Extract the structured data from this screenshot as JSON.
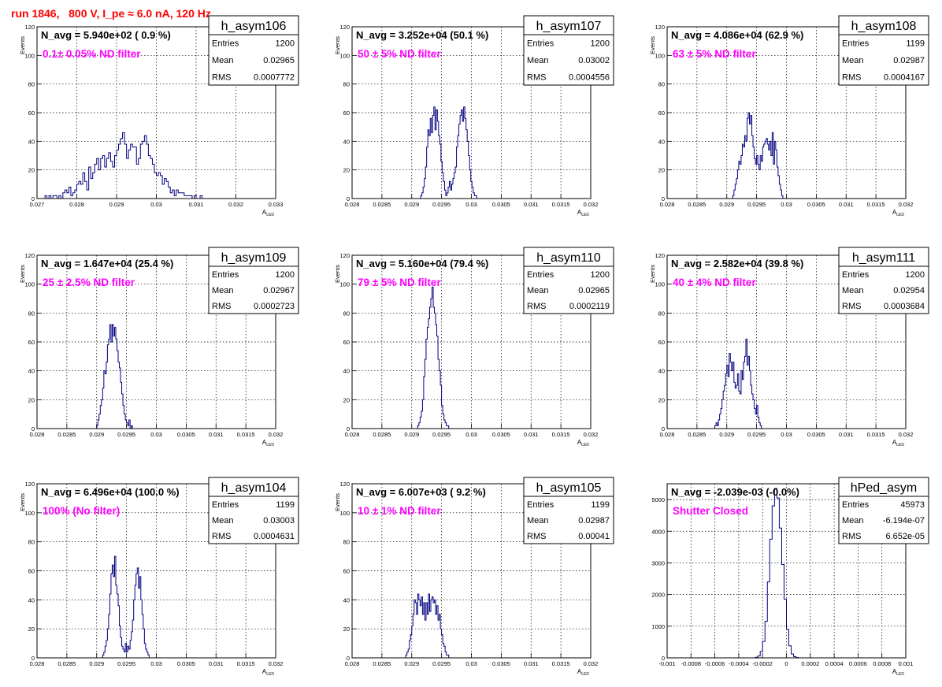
{
  "title": "run 1846,   800 V, I_pe ≈ 6.0 nA, 120 Hz",
  "stat_labels": {
    "entries": "Entries",
    "mean": "Mean",
    "rms": "RMS"
  },
  "line_color": "#000080",
  "chart_data": [
    {
      "type": "histogram",
      "name": "h_asym106",
      "navg": "N_avg = 5.940e+02 ( 0.9 %)",
      "note": "0.1± 0.05% ND filter",
      "stats": {
        "entries": "1200",
        "mean": "0.02965",
        "rms": "0.0007772"
      },
      "xlabel": "A",
      "xlabel_sub": "LED",
      "ylabel": "Events",
      "xlim": [
        0.027,
        0.033
      ],
      "ylim": [
        0,
        120
      ],
      "xticks": [
        0.027,
        0.028,
        0.029,
        0.03,
        0.031,
        0.032,
        0.033
      ],
      "xticklabels": [
        "0.027",
        "0.028",
        "0.029",
        "0.03",
        "0.031",
        "0.032",
        "0.033"
      ],
      "yticks": [
        0,
        20,
        40,
        60,
        80,
        100,
        120
      ],
      "bin_start": 0.0272,
      "bin_width": 5e-05,
      "values": [
        2,
        0,
        2,
        0,
        2,
        2,
        0,
        2,
        0,
        4,
        6,
        4,
        8,
        2,
        4,
        6,
        10,
        12,
        10,
        18,
        12,
        6,
        22,
        14,
        18,
        24,
        28,
        20,
        28,
        30,
        22,
        28,
        32,
        26,
        22,
        30,
        34,
        38,
        42,
        46,
        38,
        28,
        34,
        38,
        36,
        36,
        24,
        28,
        38,
        40,
        44,
        38,
        30,
        28,
        24,
        18,
        16,
        18,
        16,
        10,
        14,
        12,
        8,
        4,
        6,
        2,
        6,
        4,
        4,
        4,
        2,
        2,
        2,
        2,
        0,
        2,
        0,
        0,
        2,
        0,
        0,
        0,
        0,
        0,
        0,
        0,
        0,
        0,
        0,
        0,
        0,
        0
      ]
    },
    {
      "type": "histogram",
      "name": "h_asym107",
      "navg": "N_avg = 3.252e+04 (50.1 %)",
      "note": "50 ± 5% ND filter",
      "stats": {
        "entries": "1200",
        "mean": "0.03002",
        "rms": "0.0004556"
      },
      "xlabel": "A",
      "xlabel_sub": "LED",
      "ylabel": "Events",
      "xlim": [
        0.028,
        0.032
      ],
      "ylim": [
        0,
        120
      ],
      "xticks": [
        0.028,
        0.0285,
        0.029,
        0.0295,
        0.03,
        0.0305,
        0.031,
        0.0315,
        0.032
      ],
      "xticklabels": [
        "0.028",
        "0.0285",
        "0.029",
        "0.0295",
        "0.03",
        "0.0305",
        "0.031",
        "0.0315",
        "0.032"
      ],
      "yticks": [
        0,
        20,
        40,
        60,
        80,
        100,
        120
      ],
      "bin_start": 0.02915,
      "bin_width": 2e-05,
      "values": [
        2,
        4,
        8,
        14,
        22,
        36,
        48,
        44,
        56,
        46,
        58,
        64,
        48,
        62,
        54,
        44,
        38,
        26,
        18,
        12,
        6,
        2,
        4,
        8,
        12,
        6,
        10,
        14,
        18,
        22,
        36,
        44,
        52,
        58,
        62,
        54,
        64,
        56,
        48,
        40,
        30,
        20,
        12,
        8,
        4,
        2,
        2,
        0
      ]
    },
    {
      "type": "histogram",
      "name": "h_asym108",
      "navg": "N_avg = 4.086e+04 (62.9 %)",
      "note": "63 ± 5% ND filter",
      "stats": {
        "entries": "1199",
        "mean": "0.02987",
        "rms": "0.0004167"
      },
      "xlabel": "A",
      "xlabel_sub": "LED",
      "ylabel": "Events",
      "xlim": [
        0.028,
        0.032
      ],
      "ylim": [
        0,
        120
      ],
      "xticks": [
        0.028,
        0.0285,
        0.029,
        0.0295,
        0.03,
        0.0305,
        0.031,
        0.0315,
        0.032
      ],
      "xticklabels": [
        "0.028",
        "0.0285",
        "0.029",
        "0.0295",
        "0.03",
        "0.0305",
        "0.031",
        "0.0315",
        "0.032"
      ],
      "yticks": [
        0,
        20,
        40,
        60,
        80,
        100,
        120
      ],
      "bin_start": 0.0291,
      "bin_width": 2e-05,
      "values": [
        2,
        6,
        10,
        14,
        20,
        26,
        24,
        30,
        38,
        36,
        44,
        40,
        56,
        60,
        52,
        58,
        44,
        36,
        28,
        24,
        30,
        24,
        20,
        30,
        26,
        36,
        38,
        40,
        42,
        38,
        34,
        40,
        30,
        46,
        24,
        40,
        34,
        22,
        16,
        10,
        6,
        2,
        0
      ]
    },
    {
      "type": "histogram",
      "name": "h_asym109",
      "navg": "N_avg = 1.647e+04 (25.4 %)",
      "note": "25 ± 2.5% ND filter",
      "stats": {
        "entries": "1200",
        "mean": "0.02967",
        "rms": "0.0002723"
      },
      "xlabel": "A",
      "xlabel_sub": "LED",
      "ylabel": "Events",
      "xlim": [
        0.028,
        0.032
      ],
      "ylim": [
        0,
        120
      ],
      "xticks": [
        0.028,
        0.0285,
        0.029,
        0.0295,
        0.03,
        0.0305,
        0.031,
        0.0315,
        0.032
      ],
      "xticklabels": [
        "0.028",
        "0.0285",
        "0.029",
        "0.0295",
        "0.03",
        "0.0305",
        "0.031",
        "0.0315",
        "0.032"
      ],
      "yticks": [
        0,
        20,
        40,
        60,
        80,
        100,
        120
      ],
      "bin_start": 0.029,
      "bin_width": 2e-05,
      "values": [
        2,
        6,
        10,
        16,
        20,
        28,
        40,
        38,
        46,
        58,
        62,
        72,
        60,
        72,
        64,
        70,
        62,
        54,
        46,
        42,
        32,
        24,
        16,
        10,
        6,
        4,
        2,
        6,
        0,
        2
      ]
    },
    {
      "type": "histogram",
      "name": "h_asym110",
      "navg": "N_avg = 5.160e+04 (79.4 %)",
      "note": "79 ± 5% ND filter",
      "stats": {
        "entries": "1200",
        "mean": "0.02965",
        "rms": "0.0002119"
      },
      "xlabel": "A",
      "xlabel_sub": "LED",
      "ylabel": "Events",
      "xlim": [
        0.028,
        0.032
      ],
      "ylim": [
        0,
        120
      ],
      "xticks": [
        0.028,
        0.0285,
        0.029,
        0.0295,
        0.03,
        0.0305,
        0.031,
        0.0315,
        0.032
      ],
      "xticklabels": [
        "0.028",
        "0.0285",
        "0.029",
        "0.0295",
        "0.03",
        "0.0305",
        "0.031",
        "0.0315",
        "0.032"
      ],
      "yticks": [
        0,
        20,
        40,
        60,
        80,
        100,
        120
      ],
      "bin_start": 0.0291,
      "bin_width": 2e-05,
      "values": [
        2,
        4,
        8,
        12,
        20,
        36,
        48,
        62,
        70,
        76,
        84,
        90,
        98,
        84,
        80,
        72,
        64,
        48,
        40,
        30,
        16,
        10,
        6,
        4,
        2,
        2
      ]
    },
    {
      "type": "histogram",
      "name": "h_asym111",
      "navg": "N_avg = 2.582e+04 (39.8 %)",
      "note": "40 ± 4% ND filter",
      "stats": {
        "entries": "1200",
        "mean": "0.02954",
        "rms": "0.0003684"
      },
      "xlabel": "A",
      "xlabel_sub": "LED",
      "ylabel": "Events",
      "xlim": [
        0.028,
        0.032
      ],
      "ylim": [
        0,
        120
      ],
      "xticks": [
        0.028,
        0.0285,
        0.029,
        0.0295,
        0.03,
        0.0305,
        0.031,
        0.0315,
        0.032
      ],
      "xticklabels": [
        "0.028",
        "0.0285",
        "0.029",
        "0.0295",
        "0.03",
        "0.0305",
        "0.031",
        "0.0315",
        "0.032"
      ],
      "yticks": [
        0,
        20,
        40,
        60,
        80,
        100,
        120
      ],
      "bin_start": 0.0288,
      "bin_width": 2e-05,
      "values": [
        2,
        4,
        2,
        6,
        10,
        14,
        20,
        26,
        30,
        38,
        44,
        36,
        52,
        46,
        40,
        46,
        32,
        28,
        30,
        38,
        26,
        24,
        40,
        34,
        46,
        50,
        62,
        44,
        50,
        40,
        30,
        24,
        20,
        14,
        10,
        16,
        8,
        4,
        2
      ]
    },
    {
      "type": "histogram",
      "name": "h_asym104",
      "navg": "N_avg = 6.496e+04 (100.0 %)",
      "note": "100% (No filter)",
      "stats": {
        "entries": "1199",
        "mean": "0.03003",
        "rms": "0.0004631"
      },
      "xlabel": "A",
      "xlabel_sub": "LED",
      "ylabel": "Events",
      "xlim": [
        0.028,
        0.032
      ],
      "ylim": [
        0,
        120
      ],
      "xticks": [
        0.028,
        0.0285,
        0.029,
        0.0295,
        0.03,
        0.0305,
        0.031,
        0.0315,
        0.032
      ],
      "xticklabels": [
        "0.028",
        "0.0285",
        "0.029",
        "0.0295",
        "0.03",
        "0.0305",
        "0.031",
        "0.0315",
        "0.032"
      ],
      "yticks": [
        0,
        20,
        40,
        60,
        80,
        100,
        120
      ],
      "bin_start": 0.0291,
      "bin_width": 2e-05,
      "values": [
        2,
        4,
        8,
        12,
        20,
        30,
        44,
        58,
        64,
        56,
        70,
        50,
        44,
        36,
        22,
        14,
        8,
        6,
        4,
        10,
        4,
        8,
        6,
        12,
        18,
        26,
        40,
        50,
        58,
        62,
        48,
        56,
        40,
        30,
        20,
        10,
        6,
        4,
        2,
        0
      ]
    },
    {
      "type": "histogram",
      "name": "h_asym105",
      "navg": "N_avg = 6.007e+03 ( 9.2 %)",
      "note": "10 ± 1% ND filter",
      "stats": {
        "entries": "1199",
        "mean": "0.02987",
        "rms": "0.00041"
      },
      "xlabel": "A",
      "xlabel_sub": "LED",
      "ylabel": "Events",
      "xlim": [
        0.028,
        0.032
      ],
      "ylim": [
        0,
        120
      ],
      "xticks": [
        0.028,
        0.0285,
        0.029,
        0.0295,
        0.03,
        0.0305,
        0.031,
        0.0315,
        0.032
      ],
      "xticklabels": [
        "0.028",
        "0.0285",
        "0.029",
        "0.0295",
        "0.03",
        "0.0305",
        "0.031",
        "0.0315",
        "0.032"
      ],
      "yticks": [
        0,
        20,
        40,
        60,
        80,
        100,
        120
      ],
      "bin_start": 0.0289,
      "bin_width": 2e-05,
      "values": [
        2,
        4,
        6,
        12,
        16,
        22,
        30,
        40,
        38,
        30,
        44,
        40,
        36,
        42,
        30,
        38,
        26,
        38,
        30,
        44,
        32,
        40,
        42,
        38,
        40,
        30,
        36,
        26,
        30,
        20,
        16,
        10,
        8,
        4,
        2,
        2
      ]
    },
    {
      "type": "histogram",
      "name": "hPed_asym",
      "navg": "N_avg = -2.039e-03 (-0.0%)",
      "note": "Shutter Closed",
      "stats": {
        "entries": "45973",
        "mean": "-6.194e-07",
        "rms": "6.652e-05"
      },
      "xlabel": "A",
      "xlabel_sub": "LED",
      "ylabel": "",
      "xlim": [
        -0.001,
        0.001
      ],
      "ylim": [
        0,
        5500
      ],
      "xticks": [
        -0.001,
        -0.0008,
        -0.0006,
        -0.0004,
        -0.0002,
        0,
        0.0002,
        0.0004,
        0.0006,
        0.0008,
        0.001
      ],
      "xticklabels": [
        "-0.001",
        "-0.0008",
        "-0.0006",
        "-0.0004",
        "-0.0002",
        "0",
        "0.0002",
        "0.0004",
        "0.0006",
        "0.0008",
        "0.001"
      ],
      "yticks": [
        0,
        1000,
        2000,
        3000,
        4000,
        5000
      ],
      "bin_start": -0.00026,
      "bin_width": 2e-05,
      "values": [
        20,
        60,
        200,
        520,
        1150,
        2400,
        3750,
        4800,
        5350,
        5050,
        4100,
        2950,
        1850,
        900,
        380,
        120,
        40,
        10
      ]
    }
  ]
}
